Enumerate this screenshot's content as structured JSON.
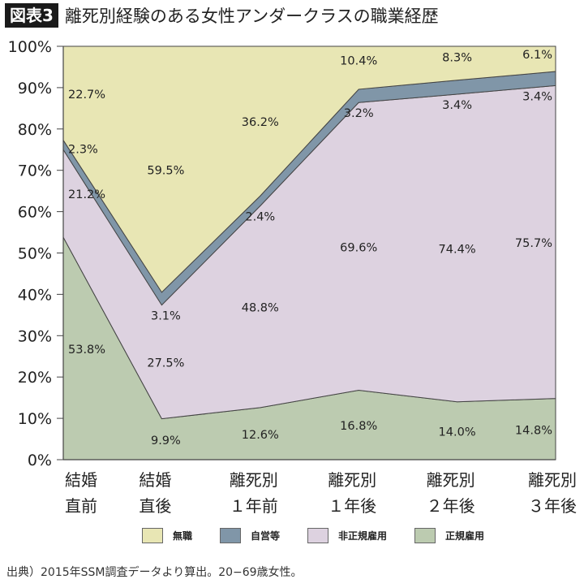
{
  "title": {
    "badge": "図表3",
    "text": "離死別経験のある女性アンダークラスの職業経歴"
  },
  "source": "出典）2015年SSM調査データより算出。20−69歳女性。",
  "chart_data": {
    "type": "area",
    "stacked": true,
    "categories": [
      [
        "結婚",
        "直前"
      ],
      [
        "結婚",
        "直後"
      ],
      [
        "離死別",
        "１年前"
      ],
      [
        "離死別",
        "１年後"
      ],
      [
        "離死別",
        "２年後"
      ],
      [
        "離死別",
        "３年後"
      ]
    ],
    "ylim": [
      0,
      100
    ],
    "yticks": [
      "0%",
      "10%",
      "20%",
      "30%",
      "40%",
      "50%",
      "60%",
      "70%",
      "80%",
      "90%",
      "100%"
    ],
    "legend_position": "bottom",
    "series": [
      {
        "name": "正規雇用",
        "color": "#bccbb0",
        "values": [
          53.8,
          9.9,
          12.6,
          16.8,
          14.0,
          14.8
        ],
        "labels": [
          "53.8%",
          "9.9%",
          "12.6%",
          "16.8%",
          "14.0%",
          "14.8%"
        ]
      },
      {
        "name": "非正規雇用",
        "color": "#ddd2e0",
        "values": [
          21.2,
          27.5,
          48.8,
          69.6,
          74.4,
          75.7
        ],
        "labels": [
          "21.2%",
          "27.5%",
          "48.8%",
          "69.6%",
          "74.4%",
          "75.7%"
        ]
      },
      {
        "name": "自営等",
        "color": "#8096a8",
        "values": [
          2.3,
          3.1,
          2.4,
          3.2,
          3.4,
          3.4
        ],
        "labels": [
          "2.3%",
          "3.1%",
          "2.4%",
          "3.2%",
          "3.4%",
          "3.4%"
        ]
      },
      {
        "name": "無職",
        "color": "#e8e6b4",
        "values": [
          22.7,
          59.5,
          36.2,
          10.4,
          8.3,
          6.1
        ],
        "labels": [
          "22.7%",
          "59.5%",
          "36.2%",
          "10.4%",
          "8.3%",
          "6.1%"
        ]
      }
    ],
    "legend_order": [
      "無職",
      "自営等",
      "非正規雇用",
      "正規雇用"
    ]
  }
}
